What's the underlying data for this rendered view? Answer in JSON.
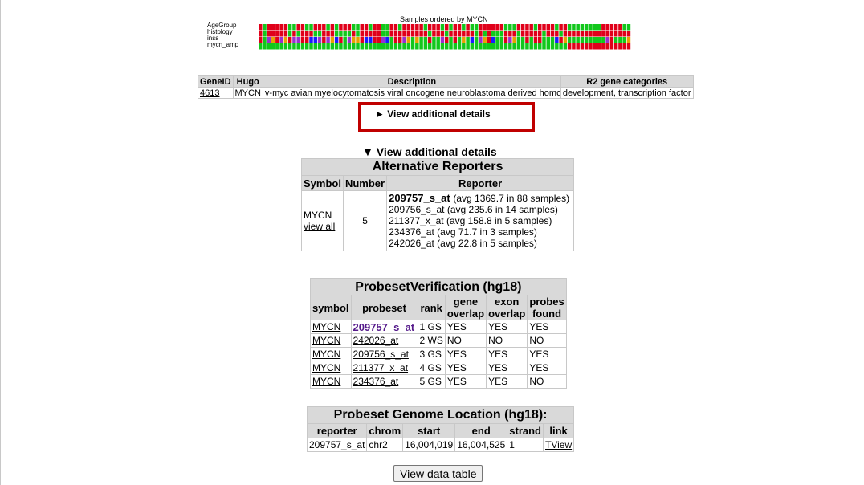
{
  "heatmap": {
    "title": "Samples ordered by MYCN",
    "row_labels": [
      "AgeGroup",
      "histology",
      "inss",
      "mycn_amp"
    ],
    "colors": {
      "red": "#e0001a",
      "green": "#12c71c",
      "orange": "#e8a000",
      "blue": "#1a1aff",
      "purple": "#9a2fd0"
    },
    "columns": 88
  },
  "gene_table": {
    "headers": [
      "GeneID",
      "Hugo",
      "Description",
      "R2 gene categories"
    ],
    "row": {
      "gene_id": "4613",
      "hugo": "MYCN",
      "description": "v-myc avian myelocytomatosis viral oncogene neuroblastoma derived homolog",
      "categories": "development, transcription factor"
    }
  },
  "details_collapsed": "► View additional details",
  "details_expanded": "▼ View additional details",
  "alt_reporters": {
    "title": "Alternative Reporters",
    "headers": [
      "Symbol",
      "Number",
      "Reporter"
    ],
    "symbol": "MYCN",
    "view_all": "view all",
    "number": "5",
    "reporters": [
      {
        "id": "209757_s_at",
        "info": "(avg 1369.7 in 88 samples)"
      },
      {
        "id": "209756_s_at",
        "info": "(avg 235.6 in 14 samples)"
      },
      {
        "id": "211377_x_at",
        "info": "(avg 158.8 in 5 samples)"
      },
      {
        "id": "234376_at",
        "info": "(avg 71.7 in 3 samples)"
      },
      {
        "id": "242026_at",
        "info": "(avg 22.8 in 5 samples)"
      }
    ]
  },
  "verification": {
    "title": "ProbesetVerification (hg18)",
    "headers": [
      "symbol",
      "probeset",
      "rank",
      "gene overlap",
      "exon overlap",
      "probes found"
    ],
    "rows": [
      {
        "symbol": "MYCN",
        "probeset": "209757_s_at",
        "rank": "1 GS",
        "gene": "YES",
        "exon": "YES",
        "found": "YES"
      },
      {
        "symbol": "MYCN",
        "probeset": "242026_at",
        "rank": "2 WS",
        "gene": "NO",
        "exon": "NO",
        "found": "NO"
      },
      {
        "symbol": "MYCN",
        "probeset": "209756_s_at",
        "rank": "3 GS",
        "gene": "YES",
        "exon": "YES",
        "found": "YES"
      },
      {
        "symbol": "MYCN",
        "probeset": "211377_x_at",
        "rank": "4 GS",
        "gene": "YES",
        "exon": "YES",
        "found": "YES"
      },
      {
        "symbol": "MYCN",
        "probeset": "234376_at",
        "rank": "5 GS",
        "gene": "YES",
        "exon": "YES",
        "found": "NO"
      }
    ]
  },
  "location": {
    "title": "Probeset Genome Location (hg18):",
    "headers": [
      "reporter",
      "chrom",
      "start",
      "end",
      "strand",
      "link"
    ],
    "row": {
      "reporter": "209757_s_at",
      "chrom": "chr2",
      "start": "16,004,019",
      "end": "16,004,525",
      "strand": "1",
      "link": "TView"
    }
  },
  "view_data_button": "View data table"
}
